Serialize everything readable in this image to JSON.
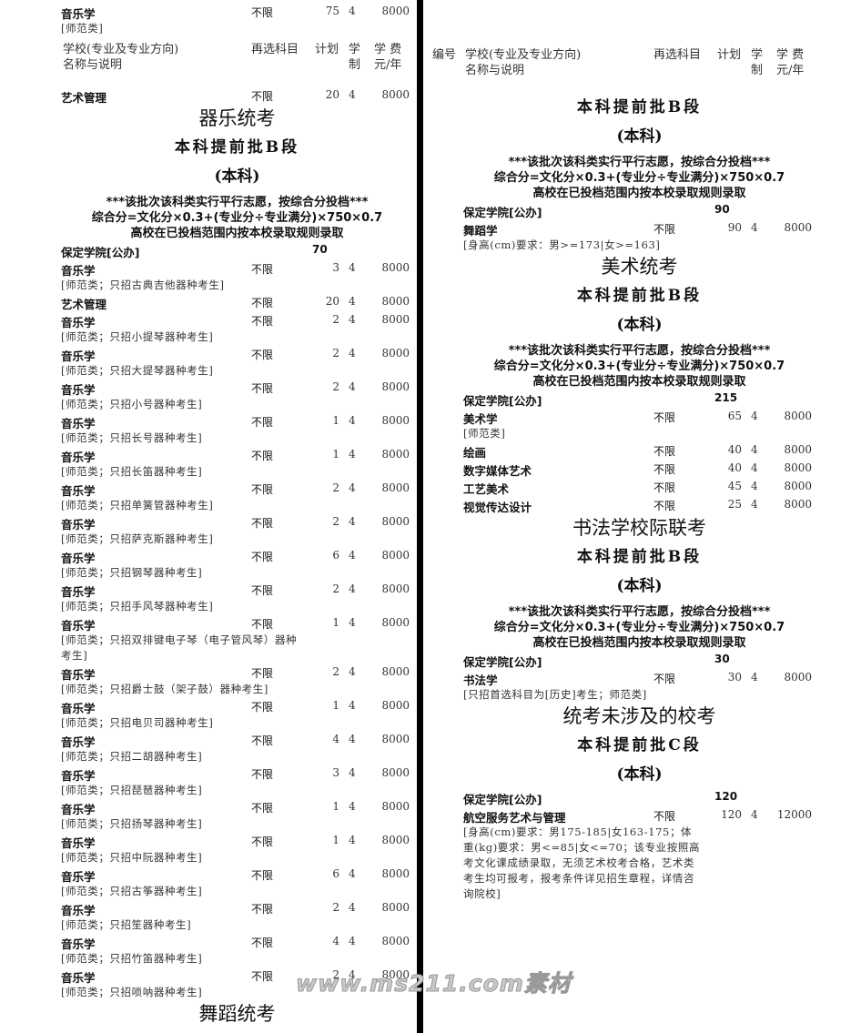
{
  "left": [
    {
      "major": "音乐学",
      "subject": "不限",
      "plan": 75,
      "years": 4,
      "fee": 8000,
      "note": "[师范类]"
    },
    {
      "header": {
        "school": [
          "学校(专业及专业方向)",
          "名称与说明"
        ],
        "subject": "再选科目",
        "plan": "计划",
        "years": [
          "学",
          "制"
        ],
        "fee": [
          "学 费",
          "元/年"
        ]
      }
    },
    {
      "major": "艺术管理",
      "subject": "不限",
      "plan": 20,
      "years": 4,
      "fee": 8000
    },
    {
      "section": "器乐统考"
    },
    {
      "batch": "本科提前批B段"
    },
    {
      "level": "(本科)"
    },
    {
      "notice": [
        "***该批次该科类实行平行志愿，按综合分投档***",
        "综合分=文化分×0.3+(专业分÷专业满分)×750×0.7",
        "高校在已投档范围内按本校录取规则录取"
      ]
    },
    {
      "school": "保定学院[公办]",
      "plan": 70
    },
    {
      "major": "音乐学",
      "subject": "不限",
      "plan": 3,
      "years": 4,
      "fee": 8000,
      "note": "[师范类；只招古典吉他器种考生]"
    },
    {
      "major": "艺术管理",
      "subject": "不限",
      "plan": 20,
      "years": 4,
      "fee": 8000
    },
    {
      "major": "音乐学",
      "subject": "不限",
      "plan": 2,
      "years": 4,
      "fee": 8000,
      "note": "[师范类；只招小提琴器种考生]"
    },
    {
      "major": "音乐学",
      "subject": "不限",
      "plan": 2,
      "years": 4,
      "fee": 8000,
      "note": "[师范类；只招大提琴器种考生]"
    },
    {
      "major": "音乐学",
      "subject": "不限",
      "plan": 2,
      "years": 4,
      "fee": 8000,
      "note": "[师范类；只招小号器种考生]"
    },
    {
      "major": "音乐学",
      "subject": "不限",
      "plan": 1,
      "years": 4,
      "fee": 8000,
      "note": "[师范类；只招长号器种考生]"
    },
    {
      "major": "音乐学",
      "subject": "不限",
      "plan": 1,
      "years": 4,
      "fee": 8000,
      "note": "[师范类；只招长笛器种考生]"
    },
    {
      "major": "音乐学",
      "subject": "不限",
      "plan": 2,
      "years": 4,
      "fee": 8000,
      "note": "[师范类；只招单簧管器种考生]"
    },
    {
      "major": "音乐学",
      "subject": "不限",
      "plan": 2,
      "years": 4,
      "fee": 8000,
      "note": "[师范类；只招萨克斯器种考生]"
    },
    {
      "major": "音乐学",
      "subject": "不限",
      "plan": 6,
      "years": 4,
      "fee": 8000,
      "note": "[师范类；只招钢琴器种考生]"
    },
    {
      "major": "音乐学",
      "subject": "不限",
      "plan": 2,
      "years": 4,
      "fee": 8000,
      "note": "[师范类；只招手风琴器种考生]"
    },
    {
      "major": "音乐学",
      "subject": "不限",
      "plan": 1,
      "years": 4,
      "fee": 8000,
      "note": "[师范类；只招双排键电子琴（电子管风琴）器种考生]"
    },
    {
      "major": "音乐学",
      "subject": "不限",
      "plan": 2,
      "years": 4,
      "fee": 8000,
      "note": "[师范类；只招爵士鼓（架子鼓）器种考生]"
    },
    {
      "major": "音乐学",
      "subject": "不限",
      "plan": 1,
      "years": 4,
      "fee": 8000,
      "note": "[师范类；只招电贝司器种考生]"
    },
    {
      "major": "音乐学",
      "subject": "不限",
      "plan": 4,
      "years": 4,
      "fee": 8000,
      "note": "[师范类；只招二胡器种考生]"
    },
    {
      "major": "音乐学",
      "subject": "不限",
      "plan": 3,
      "years": 4,
      "fee": 8000,
      "note": "[师范类；只招琵琶器种考生]"
    },
    {
      "major": "音乐学",
      "subject": "不限",
      "plan": 1,
      "years": 4,
      "fee": 8000,
      "note": "[师范类；只招扬琴器种考生]"
    },
    {
      "major": "音乐学",
      "subject": "不限",
      "plan": 1,
      "years": 4,
      "fee": 8000,
      "note": "[师范类；只招中阮器种考生]"
    },
    {
      "major": "音乐学",
      "subject": "不限",
      "plan": 6,
      "years": 4,
      "fee": 8000,
      "note": "[师范类；只招古筝器种考生]"
    },
    {
      "major": "音乐学",
      "subject": "不限",
      "plan": 2,
      "years": 4,
      "fee": 8000,
      "note": "[师范类；只招笙器种考生]"
    },
    {
      "major": "音乐学",
      "subject": "不限",
      "plan": 4,
      "years": 4,
      "fee": 8000,
      "note": "[师范类；只招竹笛器种考生]"
    },
    {
      "major": "音乐学",
      "subject": "不限",
      "plan": 2,
      "years": 4,
      "fee": 8000,
      "note": "[师范类；只招唢呐器种考生]"
    },
    {
      "section": "舞蹈统考"
    }
  ],
  "right": [
    {
      "header": {
        "id": "编号",
        "school": [
          "学校(专业及专业方向)",
          "名称与说明"
        ],
        "subject": "再选科目",
        "plan": "计划",
        "years": [
          "学",
          "制"
        ],
        "fee": [
          "学 费",
          "元/年"
        ]
      }
    },
    {
      "batch": "本科提前批B段"
    },
    {
      "level": "(本科)"
    },
    {
      "notice": [
        "***该批次该科类实行平行志愿，按综合分投档***",
        "综合分=文化分×0.3+(专业分÷专业满分)×750×0.7",
        "高校在已投档范围内按本校录取规则录取"
      ]
    },
    {
      "school": "保定学院[公办]",
      "plan": 90
    },
    {
      "major": "舞蹈学",
      "subject": "不限",
      "plan": 90,
      "years": 4,
      "fee": 8000,
      "note": "[身高(cm)要求：男>=173|女>=163]"
    },
    {
      "section": "美术统考"
    },
    {
      "batch": "本科提前批B段"
    },
    {
      "level": "(本科)"
    },
    {
      "notice": [
        "***该批次该科类实行平行志愿，按综合分投档***",
        "综合分=文化分×0.3+(专业分÷专业满分)×750×0.7",
        "高校在已投档范围内按本校录取规则录取"
      ]
    },
    {
      "school": "保定学院[公办]",
      "plan": 215
    },
    {
      "major": "美术学",
      "subject": "不限",
      "plan": 65,
      "years": 4,
      "fee": 8000,
      "note": "[师范类]"
    },
    {
      "major": "绘画",
      "subject": "不限",
      "plan": 40,
      "years": 4,
      "fee": 8000
    },
    {
      "major": "数字媒体艺术",
      "subject": "不限",
      "plan": 40,
      "years": 4,
      "fee": 8000
    },
    {
      "major": "工艺美术",
      "subject": "不限",
      "plan": 45,
      "years": 4,
      "fee": 8000
    },
    {
      "major": "视觉传达设计",
      "subject": "不限",
      "plan": 25,
      "years": 4,
      "fee": 8000
    },
    {
      "section": "书法学校际联考"
    },
    {
      "batch": "本科提前批B段"
    },
    {
      "level": "(本科)"
    },
    {
      "notice": [
        "***该批次该科类实行平行志愿，按综合分投档***",
        "综合分=文化分×0.3+(专业分÷专业满分)×750×0.7",
        "高校在已投档范围内按本校录取规则录取"
      ]
    },
    {
      "school": "保定学院[公办]",
      "plan": 30
    },
    {
      "major": "书法学",
      "subject": "不限",
      "plan": 30,
      "years": 4,
      "fee": 8000,
      "note": "[只招首选科目为[历史]考生；师范类]"
    },
    {
      "section": "统考未涉及的校考"
    },
    {
      "batch": "本科提前批C段"
    },
    {
      "level": "(本科)"
    },
    {
      "school": "保定学院[公办]",
      "plan": 120
    },
    {
      "major": "航空服务艺术与管理",
      "subject": "不限",
      "plan": 120,
      "years": 4,
      "fee": 12000,
      "note": "[身高(cm)要求：男175-185|女163-175；体重(kg)要求：男<=85|女<=70；该专业按照高考文化课成绩录取，无须艺术校考合格，艺术类考生均可报考，报考条件详见招生章程，详情咨询院校]"
    }
  ],
  "watermark": "www.ms211.com素材"
}
